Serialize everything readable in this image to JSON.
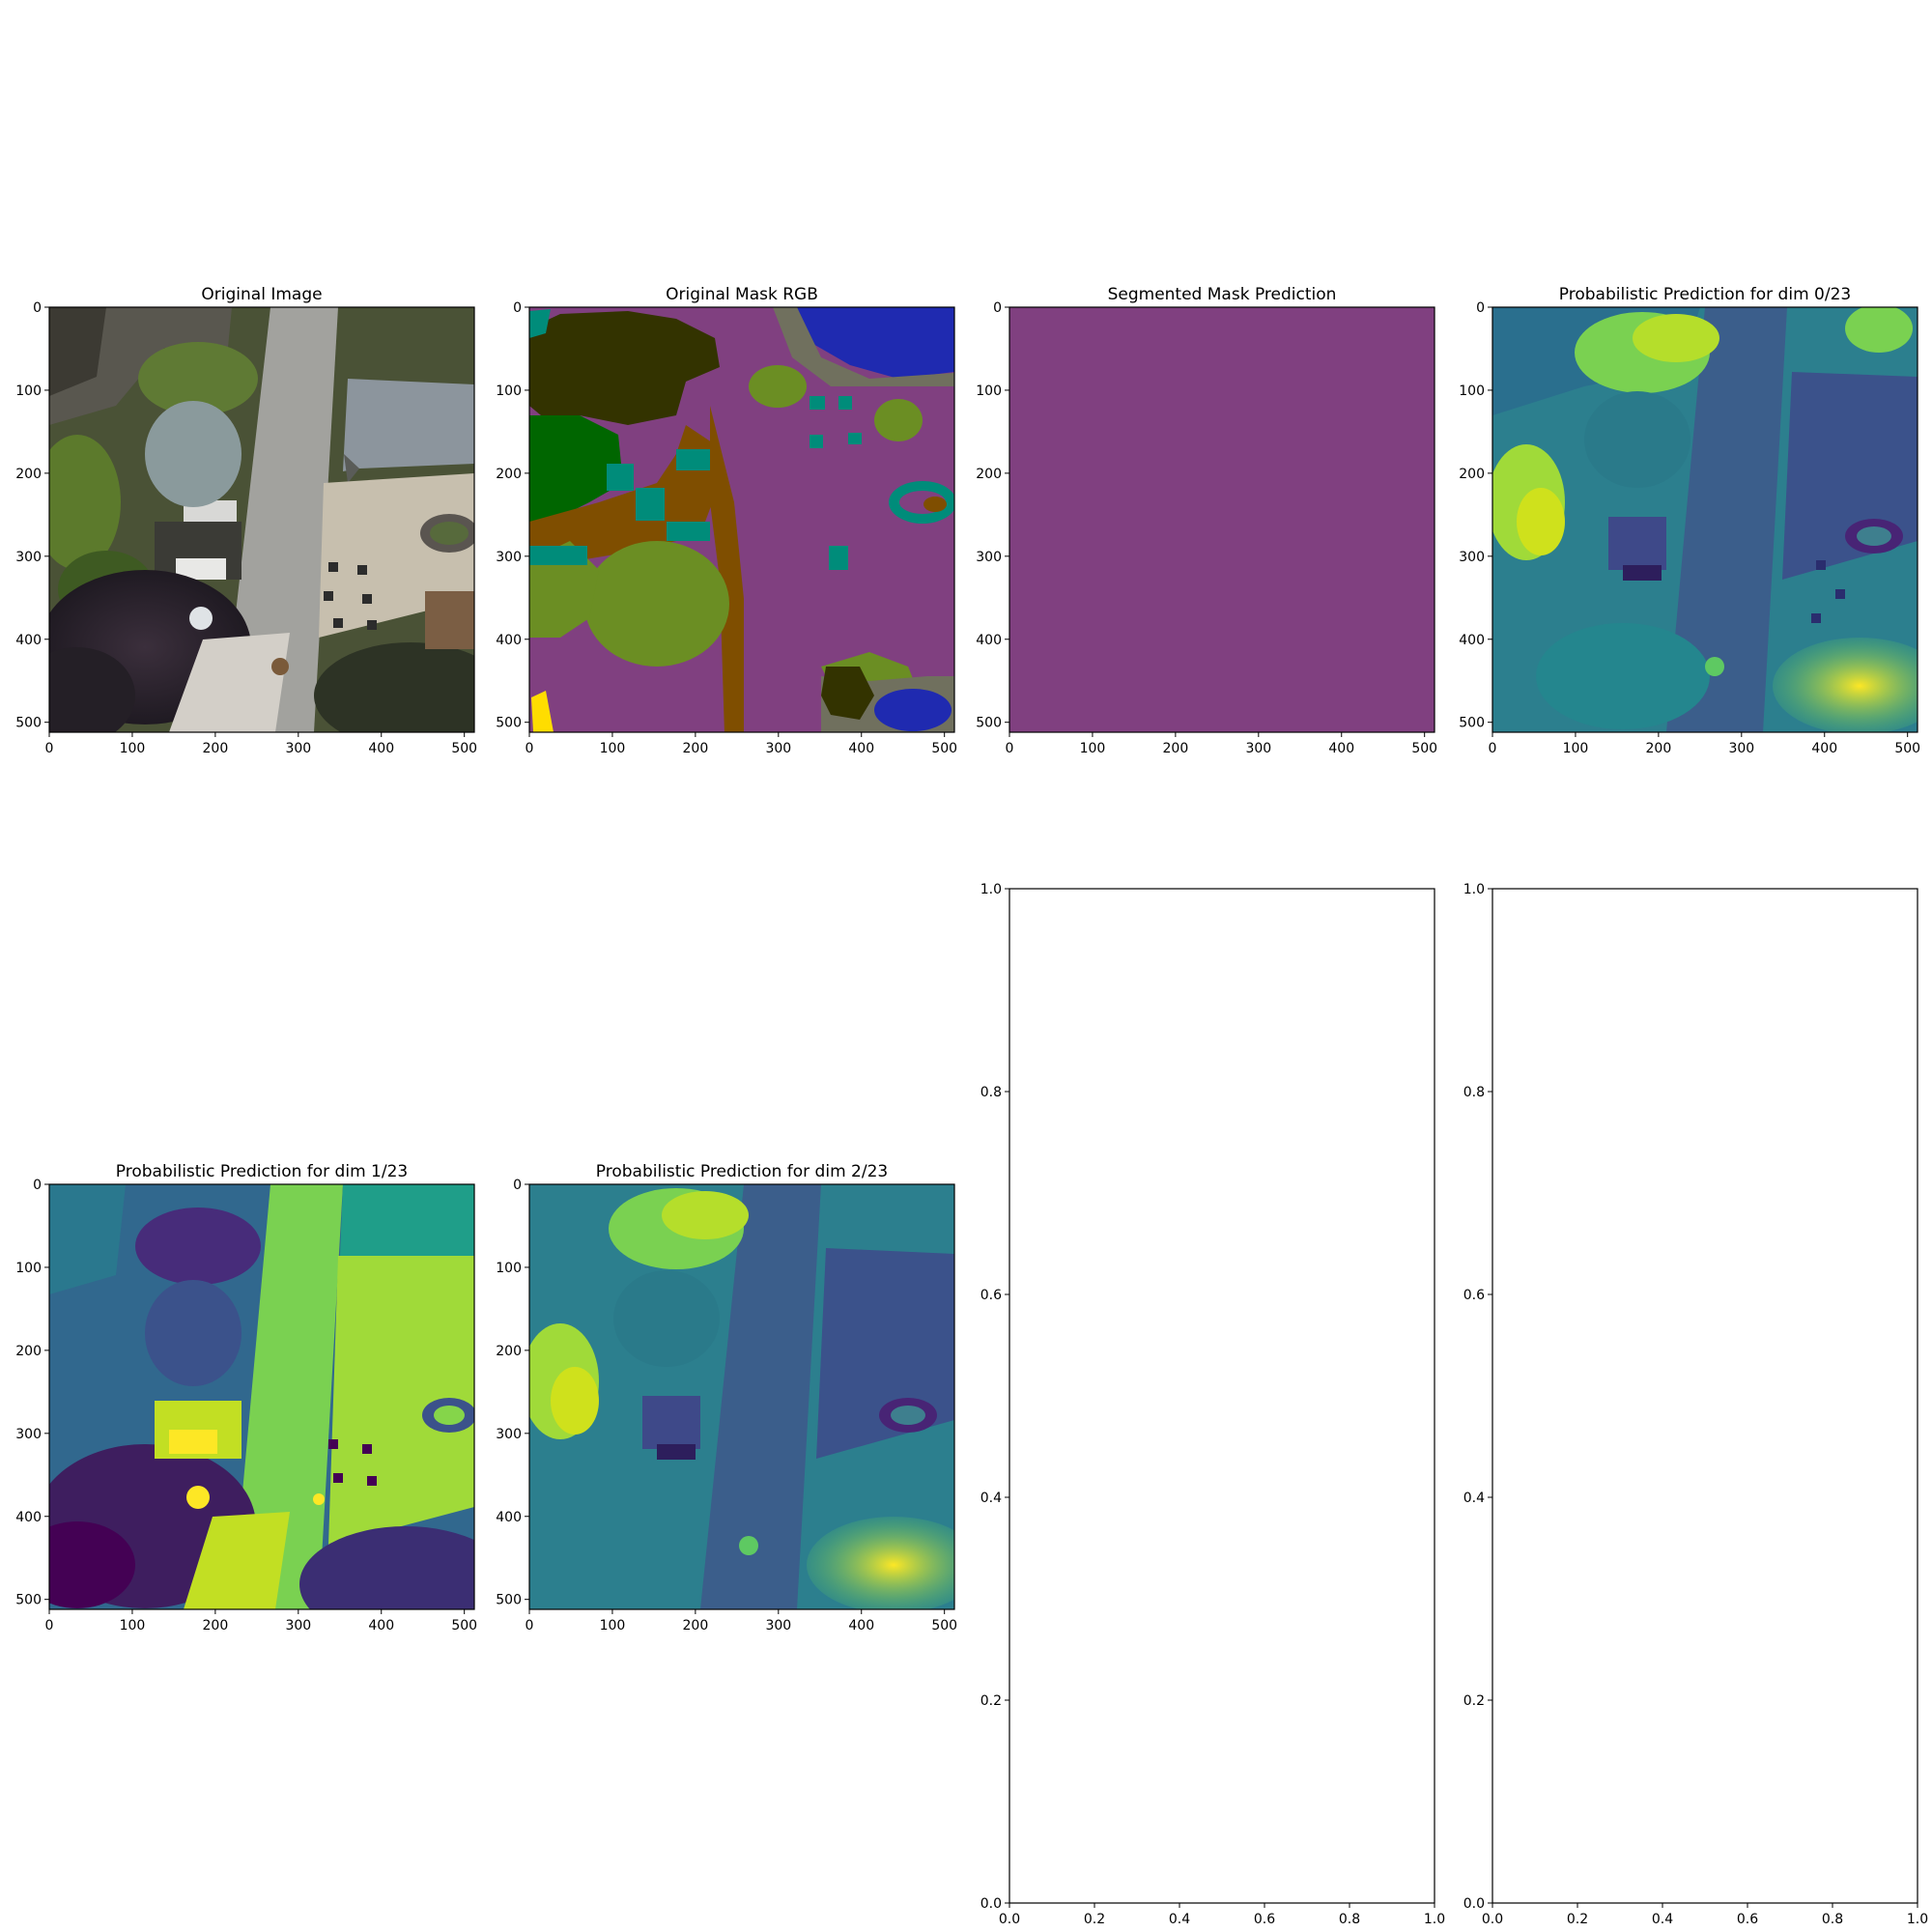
{
  "colors": {
    "mask_purple": "#804080",
    "dark_tree": "#333300",
    "vegetation_green": "#6b8e23",
    "grass_dark_green": "#006600",
    "brown": "#7f4e00",
    "teal": "#008c7a",
    "blue": "#1f2ab0",
    "gray": "#70705e",
    "yellow": "#ffdd00",
    "viridis": [
      "#440154",
      "#3b528b",
      "#21918c",
      "#5ec962",
      "#fde725"
    ],
    "photo": [
      "#3e4a2c",
      "#9a9a96",
      "#c8c4b8",
      "#5f6a40",
      "#2a2430",
      "#8a949c"
    ]
  },
  "chart_data": [
    {
      "id": "original-image",
      "type": "image",
      "title": "Original Image",
      "image_kind": "rgb-photo",
      "xlim": [
        0,
        512
      ],
      "ylim": [
        512,
        0
      ],
      "xticks": [
        "0",
        "100",
        "200",
        "300",
        "400",
        "500"
      ],
      "yticks": [
        "0",
        "100",
        "200",
        "300",
        "400",
        "500"
      ]
    },
    {
      "id": "original-mask",
      "type": "image",
      "title": "Original Mask RGB",
      "image_kind": "segmentation-mask",
      "xlim": [
        0,
        512
      ],
      "ylim": [
        512,
        0
      ],
      "xticks": [
        "0",
        "100",
        "200",
        "300",
        "400",
        "500"
      ],
      "yticks": [
        "0",
        "100",
        "200",
        "300",
        "400",
        "500"
      ]
    },
    {
      "id": "segmented-prediction",
      "type": "image",
      "title": "Segmented Mask Prediction",
      "image_kind": "uniform",
      "fill": "#804080",
      "xlim": [
        0,
        512
      ],
      "ylim": [
        512,
        0
      ],
      "xticks": [
        "0",
        "100",
        "200",
        "300",
        "400",
        "500"
      ],
      "yticks": [
        "0",
        "100",
        "200",
        "300",
        "400",
        "500"
      ]
    },
    {
      "id": "prob-dim-0",
      "type": "heatmap",
      "title": "Probabilistic Prediction for dim 0/23",
      "colormap": "viridis",
      "xlim": [
        0,
        512
      ],
      "ylim": [
        512,
        0
      ],
      "xticks": [
        "0",
        "100",
        "200",
        "300",
        "400",
        "500"
      ],
      "yticks": [
        "0",
        "100",
        "200",
        "300",
        "400",
        "500"
      ]
    },
    {
      "id": "prob-dim-1",
      "type": "heatmap",
      "title": "Probabilistic Prediction for dim 1/23",
      "colormap": "viridis",
      "xlim": [
        0,
        512
      ],
      "ylim": [
        512,
        0
      ],
      "xticks": [
        "0",
        "100",
        "200",
        "300",
        "400",
        "500"
      ],
      "yticks": [
        "0",
        "100",
        "200",
        "300",
        "400",
        "500"
      ]
    },
    {
      "id": "prob-dim-2",
      "type": "heatmap",
      "title": "Probabilistic Prediction for dim 2/23",
      "colormap": "viridis",
      "xlim": [
        0,
        512
      ],
      "ylim": [
        512,
        0
      ],
      "xticks": [
        "0",
        "100",
        "200",
        "300",
        "400",
        "500"
      ],
      "yticks": [
        "0",
        "100",
        "200",
        "300",
        "400",
        "500"
      ]
    },
    {
      "id": "empty-axes-1",
      "type": "empty",
      "title": "",
      "xlim": [
        0,
        1
      ],
      "ylim": [
        0,
        1
      ],
      "xticks": [
        "0.0",
        "0.2",
        "0.4",
        "0.6",
        "0.8",
        "1.0"
      ],
      "yticks": [
        "0.0",
        "0.2",
        "0.4",
        "0.6",
        "0.8",
        "1.0"
      ]
    },
    {
      "id": "empty-axes-2",
      "type": "empty",
      "title": "",
      "xlim": [
        0,
        1
      ],
      "ylim": [
        0,
        1
      ],
      "xticks": [
        "0.0",
        "0.2",
        "0.4",
        "0.6",
        "0.8",
        "1.0"
      ],
      "yticks": [
        "0.0",
        "0.2",
        "0.4",
        "0.6",
        "0.8",
        "1.0"
      ]
    }
  ]
}
